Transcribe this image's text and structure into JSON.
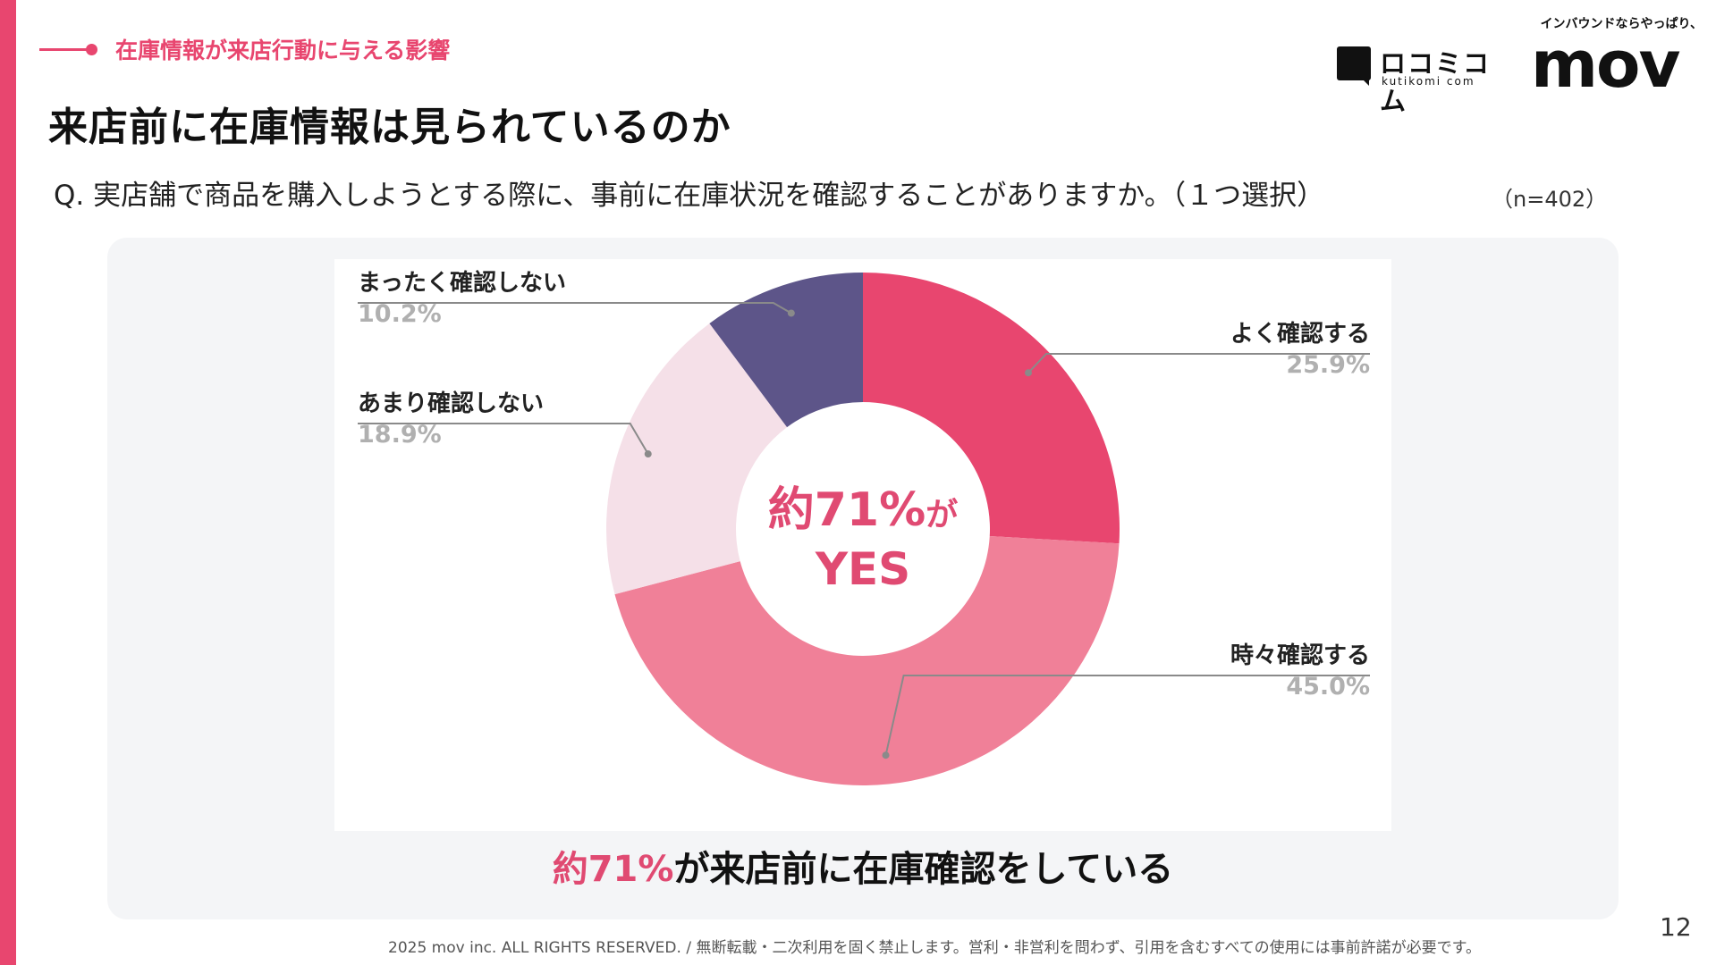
{
  "section_tag": "在庫情報が来店行動に与える影響",
  "title": "来店前に在庫情報は見られているのか",
  "question": "Q. 実店舗で商品を購入しようとする際に、事前に在庫状況を確認することがありますか。（１つ選択）",
  "n_label": "（n=402）",
  "logos": {
    "kuchikomi_name": "ロコミコム",
    "kuchikomi_url": "kutikomi com",
    "mov_tagline": "インバウンドならやっぱり、",
    "mov_word": "mov"
  },
  "chart_data": {
    "type": "pie",
    "donut": true,
    "center_text": {
      "line1_value": "約71%",
      "line1_suffix": "が",
      "line2": "YES"
    },
    "slices": [
      {
        "label": "よく確認する",
        "value": 25.9,
        "display": "25.9%",
        "color": "#e8466f"
      },
      {
        "label": "時々確認する",
        "value": 45.0,
        "display": "45.0%",
        "color": "#f08098"
      },
      {
        "label": "あまり確認しない",
        "value": 18.9,
        "display": "18.9%",
        "color": "#f5e0e8"
      },
      {
        "label": "まったく確認しない",
        "value": 10.2,
        "display": "10.2%",
        "color": "#5d5589"
      }
    ],
    "legend_placement": "leader-line callouts"
  },
  "caption": {
    "accent": "約71%",
    "rest": "が来店前に在庫確認をしている"
  },
  "footer": "2025 mov inc. ALL RIGHTS RESERVED. / 無断転載・二次利用を固く禁止します。営利・非営利を問わず、引用を含むすべての使用には事前許諾が必要です。",
  "page_number": "12"
}
